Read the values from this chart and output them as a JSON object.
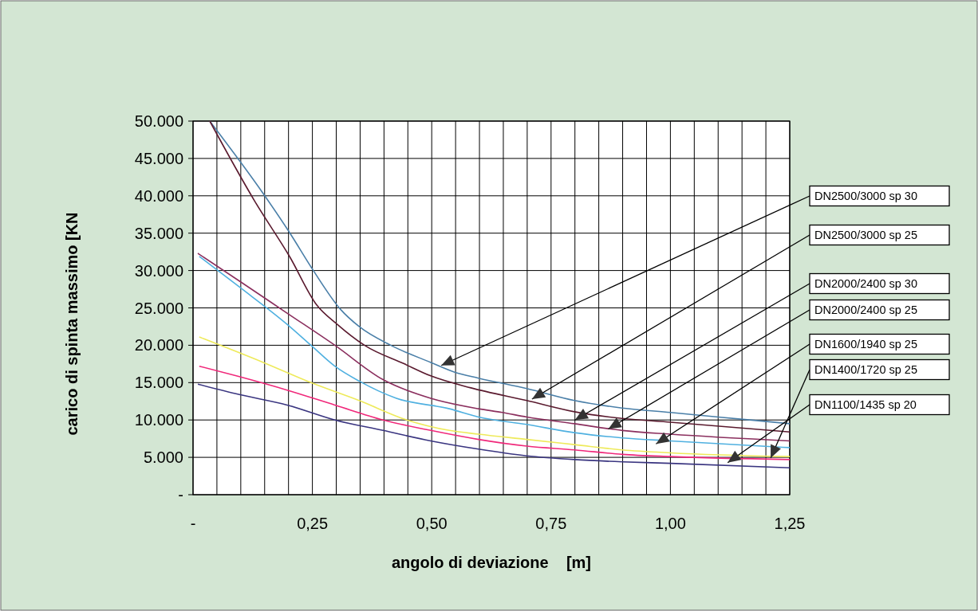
{
  "chart_data": {
    "type": "line",
    "xlabel": "angolo di deviazione    [m]",
    "ylabel": "carico di spinta massimo [KN",
    "xlim": [
      0,
      1.25
    ],
    "ylim": [
      0,
      50000
    ],
    "xticks": [
      {
        "value": 0,
        "label": "-"
      },
      {
        "value": 0.05,
        "label": null
      },
      {
        "value": 0.1,
        "label": null
      },
      {
        "value": 0.15,
        "label": null
      },
      {
        "value": 0.2,
        "label": null
      },
      {
        "value": 0.25,
        "label": "0,25"
      },
      {
        "value": 0.3,
        "label": null
      },
      {
        "value": 0.35,
        "label": null
      },
      {
        "value": 0.4,
        "label": null
      },
      {
        "value": 0.45,
        "label": null
      },
      {
        "value": 0.5,
        "label": "0,50"
      },
      {
        "value": 0.55,
        "label": null
      },
      {
        "value": 0.6,
        "label": null
      },
      {
        "value": 0.65,
        "label": null
      },
      {
        "value": 0.7,
        "label": null
      },
      {
        "value": 0.75,
        "label": "0,75"
      },
      {
        "value": 0.8,
        "label": null
      },
      {
        "value": 0.85,
        "label": null
      },
      {
        "value": 0.9,
        "label": null
      },
      {
        "value": 0.95,
        "label": null
      },
      {
        "value": 1.0,
        "label": "1,00"
      },
      {
        "value": 1.05,
        "label": null
      },
      {
        "value": 1.1,
        "label": null
      },
      {
        "value": 1.15,
        "label": null
      },
      {
        "value": 1.2,
        "label": null
      },
      {
        "value": 1.25,
        "label": "1,25"
      }
    ],
    "yticks": [
      {
        "value": 0,
        "label": "-"
      },
      {
        "value": 5000,
        "label": "5.000"
      },
      {
        "value": 10000,
        "label": "10.000"
      },
      {
        "value": 15000,
        "label": "15.000"
      },
      {
        "value": 20000,
        "label": "20.000"
      },
      {
        "value": 25000,
        "label": "25.000"
      },
      {
        "value": 30000,
        "label": "30.000"
      },
      {
        "value": 35000,
        "label": "35.000"
      },
      {
        "value": 40000,
        "label": "40.000"
      },
      {
        "value": 45000,
        "label": "45.000"
      },
      {
        "value": 50000,
        "label": "50.000"
      }
    ],
    "grid": true,
    "marker": "none",
    "line_style": "solid",
    "series": [
      {
        "color": "#4a7fa8",
        "x": [
          0.035,
          0.147,
          0.202,
          0.252,
          0.309,
          0.348,
          0.414,
          0.498,
          0.548,
          0.598,
          0.699,
          0.799,
          0.899,
          1.0,
          1.1,
          1.25
        ],
        "values": [
          50000,
          40300,
          35100,
          30000,
          24800,
          22500,
          20000,
          17700,
          16400,
          15600,
          14200,
          12600,
          11600,
          11000,
          10400,
          9500
        ]
      },
      {
        "color": "#5a1a2e",
        "x": [
          0.035,
          0.13,
          0.202,
          0.259,
          0.302,
          0.359,
          0.443,
          0.498,
          0.582,
          0.699,
          0.799,
          0.899,
          1.0,
          1.25
        ],
        "values": [
          50000,
          39200,
          31900,
          25400,
          22800,
          20000,
          17500,
          15900,
          14300,
          12600,
          11100,
          10200,
          9700,
          8400
        ]
      },
      {
        "color": "#8b2f5e",
        "x": [
          0.01,
          0.097,
          0.197,
          0.297,
          0.398,
          0.498,
          0.598,
          0.648,
          0.699,
          0.799,
          0.899,
          1.0,
          1.25
        ],
        "values": [
          32300,
          28600,
          24300,
          20000,
          15400,
          12900,
          11500,
          11000,
          10400,
          9500,
          8600,
          8100,
          7200
        ]
      },
      {
        "color": "#4fb0e0",
        "x": [
          0.013,
          0.097,
          0.197,
          0.247,
          0.297,
          0.348,
          0.426,
          0.537,
          0.598,
          0.699,
          0.799,
          0.899,
          1.0,
          1.25
        ],
        "values": [
          31900,
          27800,
          22800,
          20000,
          17200,
          15200,
          12900,
          11500,
          10400,
          9400,
          8300,
          7600,
          7200,
          6300
        ]
      },
      {
        "color": "#eeea5a",
        "x": [
          0.013,
          0.147,
          0.247,
          0.348,
          0.448,
          0.537,
          0.598,
          0.699,
          0.799,
          0.899,
          1.0,
          1.25
        ],
        "values": [
          21100,
          17700,
          15000,
          12600,
          10000,
          8600,
          8100,
          7400,
          6700,
          6000,
          5600,
          5100
        ]
      },
      {
        "color": "#f0287a",
        "x": [
          0.013,
          0.097,
          0.197,
          0.297,
          0.398,
          0.498,
          0.598,
          0.699,
          0.799,
          0.899,
          1.0,
          1.25
        ],
        "values": [
          17200,
          15800,
          14000,
          12000,
          10000,
          8600,
          7400,
          6500,
          6000,
          5400,
          5100,
          4700
        ]
      },
      {
        "color": "#3a3580",
        "x": [
          0.01,
          0.097,
          0.197,
          0.297,
          0.398,
          0.498,
          0.598,
          0.699,
          0.799,
          0.899,
          1.0,
          1.25
        ],
        "values": [
          14800,
          13400,
          12000,
          10000,
          8600,
          7200,
          6100,
          5200,
          4700,
          4400,
          4200,
          3600
        ]
      }
    ],
    "annotations": [
      {
        "text": "DN2500/3000 sp 30",
        "x": 0.52,
        "y": 17300
      },
      {
        "text": "DN2500/3000 sp 25",
        "x": 0.71,
        "y": 12800
      },
      {
        "text": "DN2000/2400 sp 30",
        "x": 0.8,
        "y": 10000
      },
      {
        "text": "DN2000/2400 sp 25",
        "x": 0.87,
        "y": 8800
      },
      {
        "text": "DN1600/1940 sp 25",
        "x": 0.97,
        "y": 6800
      },
      {
        "text": "DN1400/1720 sp 25",
        "x": 1.21,
        "y": 4900
      },
      {
        "text": "DN1100/1435 sp 20",
        "x": 1.12,
        "y": 4300
      }
    ]
  }
}
